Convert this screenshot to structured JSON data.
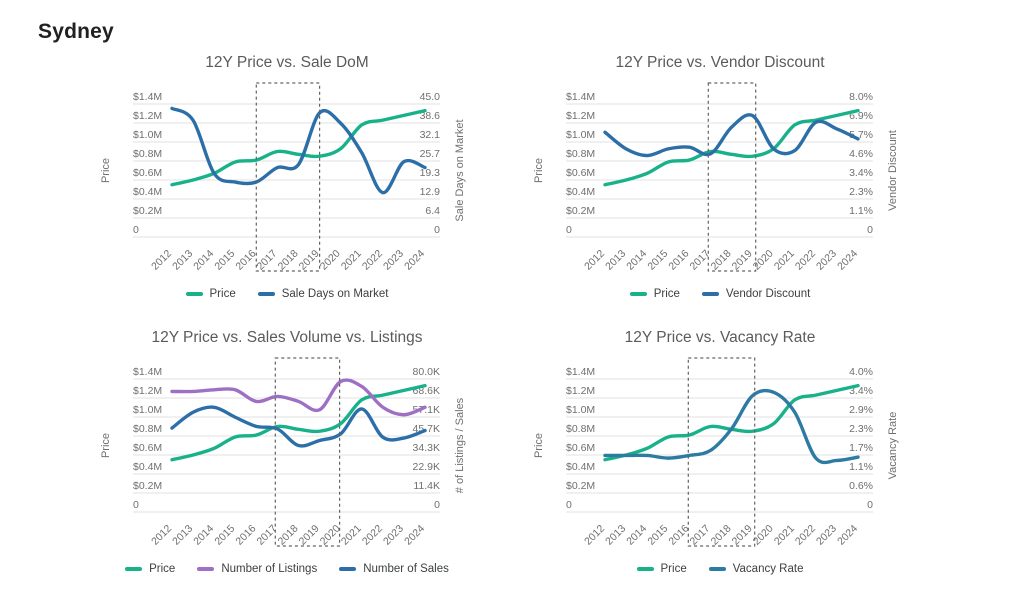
{
  "page": {
    "heading": "Sydney"
  },
  "colors": {
    "price_green": "#18b189",
    "blue": "#2c6fa8",
    "purple": "#9e70c4",
    "teal_blue": "#2d7ba3",
    "grid": "#e2e2e2",
    "tick_text": "#6f6f6f",
    "title_text": "#5b5b5b",
    "legend_text": "#3d4043",
    "highlight_box": "#636363",
    "heading_text": "#212121"
  },
  "chart_data": [
    {
      "type": "line",
      "title": "12Y Price vs. Sale DoM",
      "x": [
        2012,
        2013,
        2014,
        2015,
        2016,
        2017,
        2018,
        2019,
        2020,
        2021,
        2022,
        2023,
        2024
      ],
      "left_axis": {
        "title": "Price",
        "range": [
          0,
          1.4
        ],
        "ticks": [
          "$1.4M",
          "$1.2M",
          "$1.0M",
          "$0.8M",
          "$0.6M",
          "$0.4M",
          "$0.2M",
          "0"
        ]
      },
      "right_axis": {
        "title": "Sale Days on Market",
        "range": [
          0,
          45
        ],
        "ticks": [
          "45.0",
          "38.6",
          "32.1",
          "25.7",
          "19.3",
          "12.9",
          "6.4",
          "0"
        ]
      },
      "highlight_region": {
        "from": 2016,
        "to": 2019
      },
      "legend_position": "bottom",
      "grid": true,
      "series": [
        {
          "name": "Price",
          "axis": "left",
          "color_key": "price_green",
          "values": [
            0.55,
            0.6,
            0.67,
            0.79,
            0.81,
            0.9,
            0.87,
            0.85,
            0.93,
            1.18,
            1.23,
            1.28,
            1.33
          ]
        },
        {
          "name": "Sale Days on Market",
          "axis": "right",
          "color_key": "blue",
          "values": [
            43.5,
            39.5,
            21.5,
            18.6,
            18.6,
            23.5,
            24.5,
            42.0,
            38.5,
            28.5,
            15.0,
            25.5,
            23.5
          ]
        }
      ]
    },
    {
      "type": "line",
      "title": "12Y Price vs. Vendor Discount",
      "x": [
        2012,
        2013,
        2014,
        2015,
        2016,
        2017,
        2018,
        2019,
        2020,
        2021,
        2022,
        2023,
        2024
      ],
      "left_axis": {
        "title": "Price",
        "range": [
          0,
          1.4
        ],
        "ticks": [
          "$1.4M",
          "$1.2M",
          "$1.0M",
          "$0.8M",
          "$0.6M",
          "$0.4M",
          "$0.2M",
          "0"
        ]
      },
      "right_axis": {
        "title": "Vendor Discount",
        "range": [
          0,
          8
        ],
        "ticks": [
          "8.0%",
          "6.9%",
          "5.7%",
          "4.6%",
          "3.4%",
          "2.3%",
          "1.1%",
          "0"
        ]
      },
      "highlight_region": {
        "from": 2016.9,
        "to": 2019.15
      },
      "legend_position": "bottom",
      "grid": true,
      "series": [
        {
          "name": "Price",
          "axis": "left",
          "color_key": "price_green",
          "values": [
            0.55,
            0.6,
            0.67,
            0.79,
            0.81,
            0.9,
            0.87,
            0.85,
            0.93,
            1.18,
            1.23,
            1.28,
            1.33
          ]
        },
        {
          "name": "Vendor Discount",
          "axis": "right",
          "color_key": "blue",
          "values": [
            6.3,
            5.3,
            4.9,
            5.3,
            5.4,
            5.0,
            6.6,
            7.3,
            5.3,
            5.2,
            6.9,
            6.5,
            5.9
          ]
        }
      ]
    },
    {
      "type": "line",
      "title": "12Y Price vs. Sales Volume vs. Listings",
      "x": [
        2012,
        2013,
        2014,
        2015,
        2016,
        2017,
        2018,
        2019,
        2020,
        2021,
        2022,
        2023,
        2024
      ],
      "left_axis": {
        "title": "Price",
        "range": [
          0,
          1.4
        ],
        "ticks": [
          "$1.4M",
          "$1.2M",
          "$1.0M",
          "$0.8M",
          "$0.6M",
          "$0.4M",
          "$0.2M",
          "0"
        ]
      },
      "right_axis": {
        "title": "# of Listings / Sales",
        "range": [
          0,
          80
        ],
        "ticks": [
          "80.0K",
          "68.6K",
          "57.1K",
          "45.7K",
          "34.3K",
          "22.9K",
          "11.4K",
          "0"
        ]
      },
      "highlight_region": {
        "from": 2016.9,
        "to": 2019.95
      },
      "legend_position": "bottom",
      "grid": true,
      "series": [
        {
          "name": "Price",
          "axis": "left",
          "color_key": "price_green",
          "values": [
            0.55,
            0.6,
            0.67,
            0.79,
            0.81,
            0.9,
            0.87,
            0.85,
            0.93,
            1.18,
            1.23,
            1.28,
            1.33
          ]
        },
        {
          "name": "Number of Listings",
          "axis": "right",
          "color_key": "purple",
          "values": [
            72.5,
            72.5,
            73.5,
            73.5,
            66.5,
            69.5,
            66.5,
            61.5,
            78.5,
            75.5,
            63.0,
            58.5,
            63.0
          ]
        },
        {
          "name": "Number of Sales",
          "axis": "right",
          "color_key": "blue",
          "values": [
            50.5,
            60.0,
            63.0,
            57.0,
            51.5,
            50.0,
            40.0,
            43.0,
            47.0,
            62.0,
            45.0,
            44.5,
            49.0
          ]
        }
      ]
    },
    {
      "type": "line",
      "title": "12Y Price vs. Vacancy Rate",
      "x": [
        2012,
        2013,
        2014,
        2015,
        2016,
        2017,
        2018,
        2019,
        2020,
        2021,
        2022,
        2023,
        2024
      ],
      "left_axis": {
        "title": "Price",
        "range": [
          0,
          1.4
        ],
        "ticks": [
          "$1.4M",
          "$1.2M",
          "$1.0M",
          "$0.8M",
          "$0.6M",
          "$0.4M",
          "$0.2M",
          "0"
        ]
      },
      "right_axis": {
        "title": "Vacancy Rate",
        "range": [
          0,
          4
        ],
        "ticks": [
          "4.0%",
          "3.4%",
          "2.9%",
          "2.3%",
          "1.7%",
          "1.1%",
          "0.6%",
          "0"
        ]
      },
      "highlight_region": {
        "from": 2015.95,
        "to": 2019.1
      },
      "legend_position": "bottom",
      "grid": true,
      "series": [
        {
          "name": "Price",
          "axis": "left",
          "color_key": "price_green",
          "values": [
            0.55,
            0.6,
            0.67,
            0.79,
            0.81,
            0.9,
            0.87,
            0.85,
            0.93,
            1.18,
            1.23,
            1.28,
            1.33
          ]
        },
        {
          "name": "Vacancy Rate",
          "axis": "right",
          "color_key": "teal_blue",
          "values": [
            1.7,
            1.7,
            1.7,
            1.62,
            1.7,
            1.85,
            2.5,
            3.5,
            3.6,
            3.0,
            1.62,
            1.55,
            1.65
          ]
        }
      ]
    }
  ]
}
